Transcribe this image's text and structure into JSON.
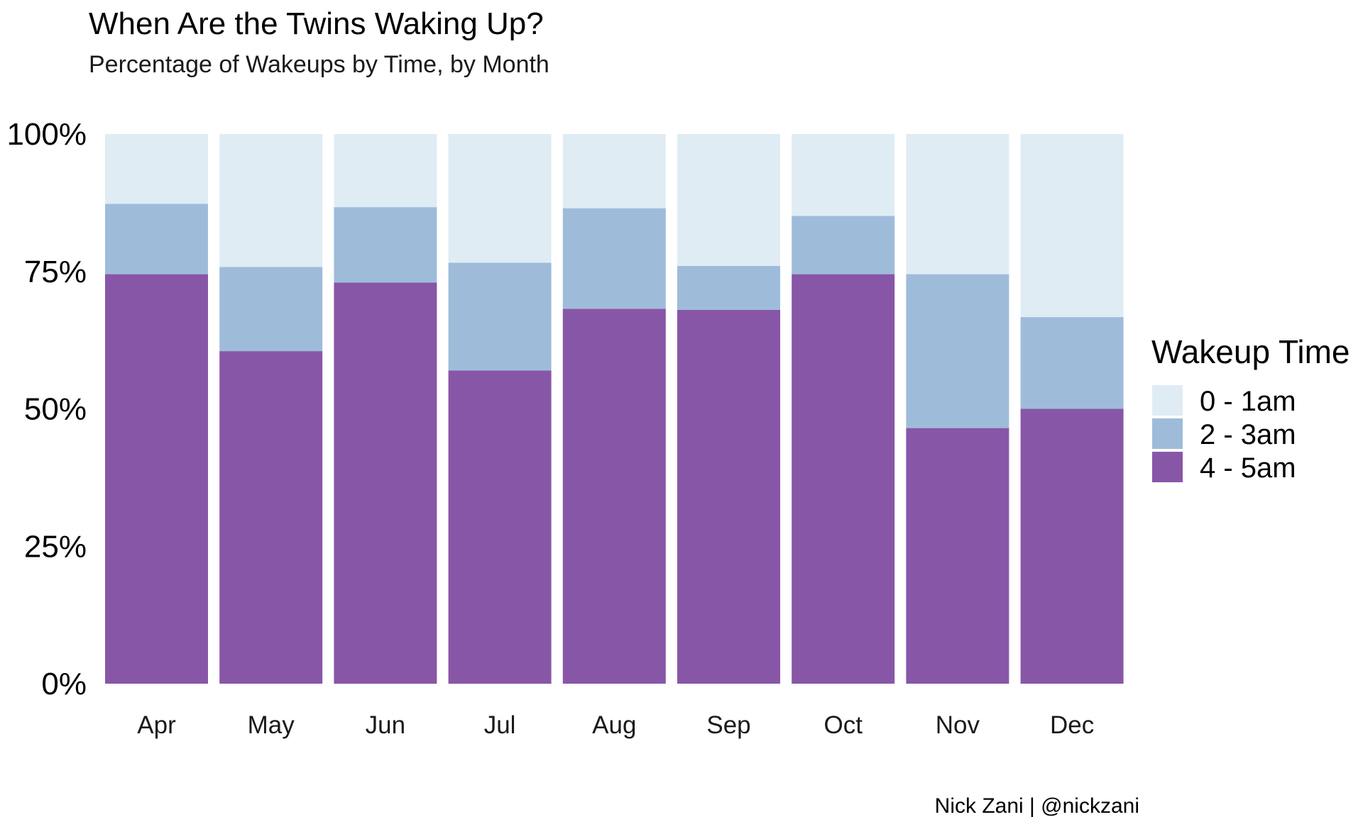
{
  "chart_data": {
    "type": "bar",
    "stacked": "percent",
    "title": "When Are the Twins Waking Up?",
    "subtitle": "Percentage of Wakeups by Time, by Month",
    "caption": "Nick Zani | @nickzani",
    "xlabel": "",
    "ylabel": "",
    "ylim": [
      0,
      100
    ],
    "y_ticks": [
      "0%",
      "25%",
      "50%",
      "75%",
      "100%"
    ],
    "y_tick_values": [
      0,
      25,
      50,
      75,
      100
    ],
    "grid": false,
    "legend": {
      "title": "Wakeup Time",
      "placement": "right"
    },
    "categories": [
      "Apr",
      "May",
      "Jun",
      "Jul",
      "Aug",
      "Sep",
      "Oct",
      "Nov",
      "Dec"
    ],
    "series": [
      {
        "name": "4 - 5am",
        "color": "#8856a7",
        "values": [
          74.5,
          60.5,
          73,
          57,
          68.2,
          68,
          74.5,
          46.5,
          50
        ]
      },
      {
        "name": "2 - 3am",
        "color": "#9ebcda",
        "values": [
          12.8,
          15.3,
          13.7,
          19.6,
          18.3,
          8,
          10.6,
          28,
          16.7
        ]
      },
      {
        "name": "0 - 1am",
        "color": "#e0ecf4",
        "values": [
          12.7,
          24.2,
          13.3,
          23.4,
          13.5,
          24,
          14.9,
          25.5,
          33.3
        ]
      }
    ]
  }
}
